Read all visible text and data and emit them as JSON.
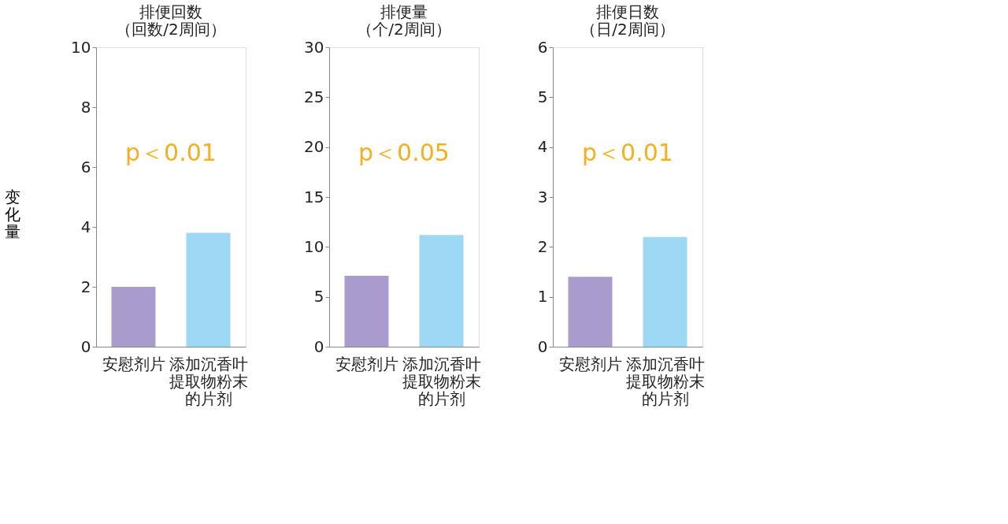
{
  "chart_data": [
    {
      "type": "bar",
      "title": "排便回数（回数/2周间）",
      "ylabel": "变化量",
      "categories": [
        "安慰剂片",
        "添加沉香叶提取物粉末的片剂"
      ],
      "values": [
        2.0,
        3.8
      ],
      "colors": [
        "#a99ccc",
        "#9dd8f5"
      ],
      "ylim": [
        0,
        10
      ],
      "yticks": [
        0,
        2,
        4,
        6,
        8,
        10
      ],
      "annotations": [
        "p＜0.01"
      ],
      "grid": false
    },
    {
      "type": "bar",
      "title": "排便量（个/2周间）",
      "categories": [
        "安慰剂片",
        "添加沉香叶提取物粉末的片剂"
      ],
      "values": [
        7.1,
        11.2
      ],
      "colors": [
        "#a99ccc",
        "#9dd8f5"
      ],
      "ylim": [
        0,
        30
      ],
      "yticks": [
        0,
        5,
        10,
        15,
        20,
        25,
        30
      ],
      "annotations": [
        "p＜0.05"
      ],
      "grid": false
    },
    {
      "type": "bar",
      "title": "排便日数（日/2周间）",
      "categories": [
        "安慰剂片",
        "添加沉香叶提取物粉末的片剂"
      ],
      "values": [
        1.4,
        2.2
      ],
      "colors": [
        "#a99ccc",
        "#9dd8f5"
      ],
      "ylim": [
        0,
        6
      ],
      "yticks": [
        0,
        1,
        2,
        3,
        4,
        5,
        6
      ],
      "annotations": [
        "p＜0.01"
      ],
      "grid": false
    }
  ]
}
